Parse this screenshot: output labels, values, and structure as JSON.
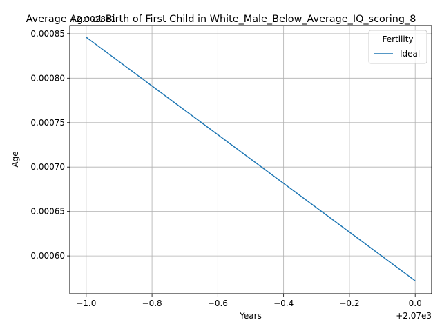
{
  "chart_data": {
    "type": "line",
    "title": "Average Age at Birth of First Child in White_Male_Below_Average_IQ_scoring_8",
    "xlabel": "Years",
    "ylabel": "Age",
    "x_offset_label": "+2.07e3",
    "y_offset_label": "+2.0028e1",
    "x_tick_labels": [
      "−1.0",
      "−0.8",
      "−0.6",
      "−0.4",
      "−0.2",
      "0.0"
    ],
    "y_tick_labels": [
      "0.00060",
      "0.00065",
      "0.00070",
      "0.00075",
      "0.00080",
      "0.00085"
    ],
    "xlim": [
      2068.95,
      2070.05
    ],
    "ylim": [
      20.0285574,
      20.0288592
    ],
    "grid": true,
    "legend": {
      "title": "Fertility",
      "placement": "top-right"
    },
    "series": [
      {
        "name": "Ideal",
        "color": "#1f77b4",
        "x": [
          2069,
          2070
        ],
        "y": [
          20.028846,
          20.028572
        ]
      }
    ]
  }
}
